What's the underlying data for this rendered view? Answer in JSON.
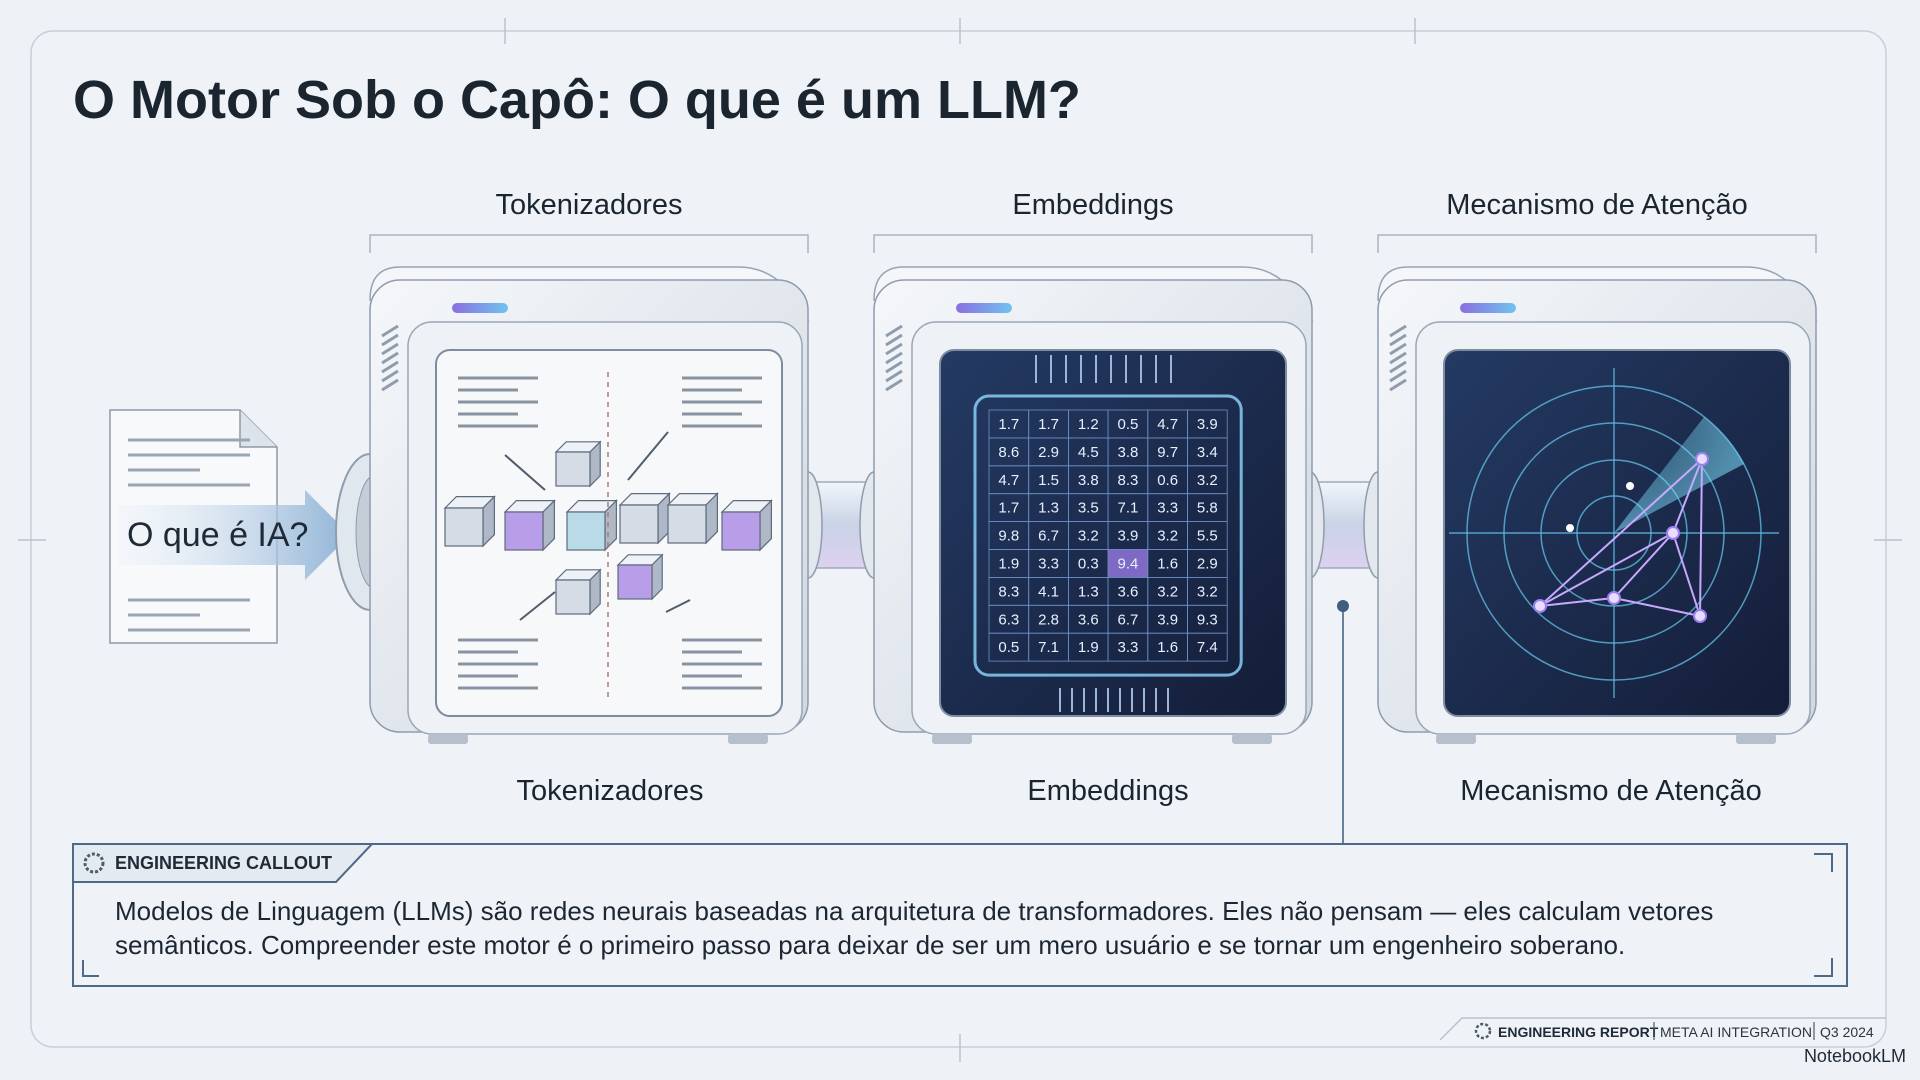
{
  "title": "O Motor Sob o Capô: O que é um LLM?",
  "input_document": {
    "text": "O que é IA?"
  },
  "stages": [
    {
      "label": "Tokenizadores",
      "caption": "Tokenizadores"
    },
    {
      "label": "Embeddings",
      "caption": "Embeddings"
    },
    {
      "label": "Mecanismo de Atenção",
      "caption": "Mecanismo de Atenção"
    }
  ],
  "embedding_matrix": [
    [
      1.7,
      1.7,
      1.2,
      0.5,
      4.7,
      3.9
    ],
    [
      8.6,
      2.9,
      4.5,
      3.8,
      9.7,
      3.4
    ],
    [
      4.7,
      1.5,
      3.8,
      8.3,
      0.6,
      3.2
    ],
    [
      1.7,
      1.3,
      3.5,
      7.1,
      3.3,
      5.8
    ],
    [
      9.8,
      6.7,
      3.2,
      3.9,
      3.2,
      5.5
    ],
    [
      1.9,
      3.3,
      0.3,
      9.4,
      1.6,
      2.9
    ],
    [
      8.3,
      4.1,
      1.3,
      3.6,
      3.2,
      3.2
    ],
    [
      6.3,
      2.8,
      3.6,
      6.7,
      3.9,
      9.3
    ],
    [
      0.5,
      7.1,
      1.9,
      3.3,
      1.6,
      7.4
    ]
  ],
  "callout": {
    "label": "ENGINEERING CALLOUT",
    "body": "Modelos de Linguagem (LLMs) são redes neurais baseadas na arquitetura de transformadores. Eles não pensam — eles calculam vetores semânticos. Compreender este motor é o primeiro passo para deixar de ser um mero usuário e se tornar um engenheiro soberano."
  },
  "footer": {
    "report": "ENGINEERING REPORT",
    "integration": "META AI INTEGRATION",
    "period": "Q3 2024"
  },
  "watermark": "NotebookLM"
}
